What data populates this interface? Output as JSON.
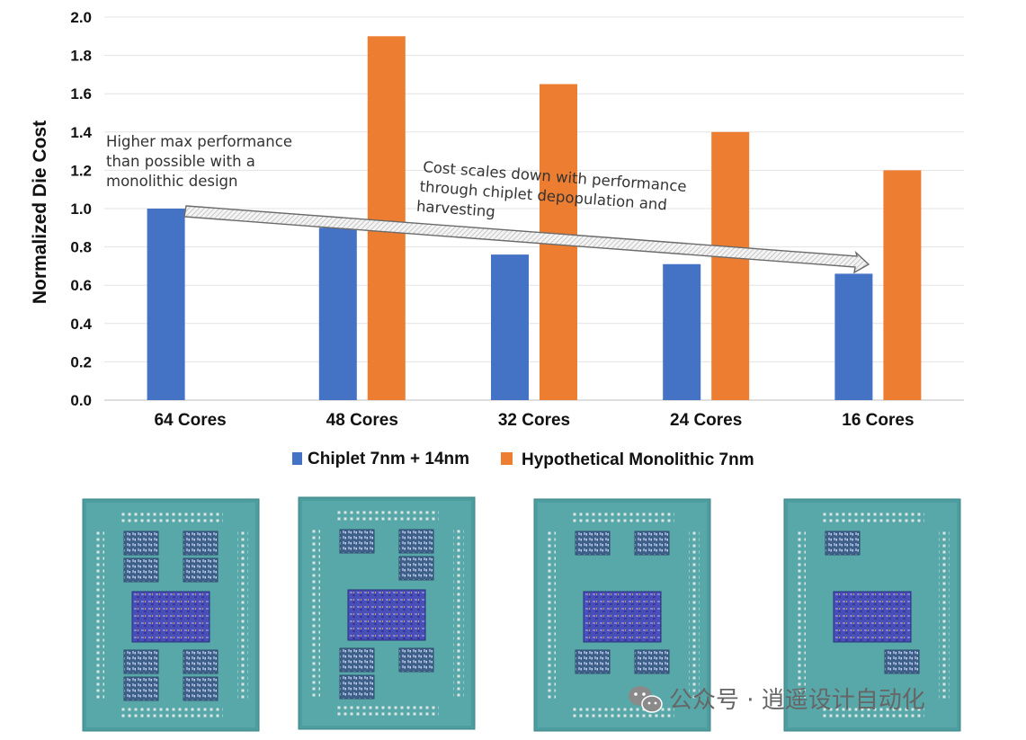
{
  "chart_data": {
    "type": "bar",
    "ylabel": "Normalized Die Cost",
    "xlabel": "",
    "ylim": [
      0,
      2.0
    ],
    "yticks": [
      "0.0",
      "0.2",
      "0.4",
      "0.6",
      "0.8",
      "1.0",
      "1.2",
      "1.4",
      "1.6",
      "1.8",
      "2.0"
    ],
    "grid": true,
    "legend_position": "bottom",
    "categories": [
      "64 Cores",
      "48 Cores",
      "32 Cores",
      "24 Cores",
      "16 Cores"
    ],
    "series": [
      {
        "name": "Chiplet 7nm + 14nm",
        "color": "#4472c4",
        "values": [
          1.0,
          0.9,
          0.76,
          0.71,
          0.66
        ]
      },
      {
        "name": "Hypothetical Monolithic 7nm",
        "color": "#ed7d31",
        "values": [
          null,
          1.9,
          1.65,
          1.4,
          1.2
        ]
      }
    ],
    "annotations": {
      "left": [
        "Higher max performance",
        "than possible with a",
        "monolithic design"
      ],
      "arrow": [
        "Cost scales down with performance",
        "through chiplet depopulation and",
        "harvesting"
      ]
    }
  },
  "images": {
    "package_icon": "cpu-package-icon",
    "packages": [
      "8 dies",
      "6 dies",
      "4 dies",
      "2 dies"
    ],
    "substrate_color": "#4a9a9c"
  },
  "watermark": {
    "icon": "wechat-icon",
    "text": "公众号 · 逍遥设计自动化"
  }
}
